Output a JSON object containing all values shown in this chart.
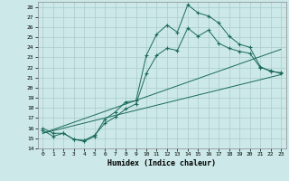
{
  "title": "",
  "xlabel": "Humidex (Indice chaleur)",
  "bg_color": "#cce8e8",
  "line_color": "#1a6b5a",
  "grid_color": "#aacccc",
  "xlim": [
    -0.5,
    23.5
  ],
  "ylim": [
    14,
    28.5
  ],
  "xticks": [
    0,
    1,
    2,
    3,
    4,
    5,
    6,
    7,
    8,
    9,
    10,
    11,
    12,
    13,
    14,
    15,
    16,
    17,
    18,
    19,
    20,
    21,
    22,
    23
  ],
  "yticks": [
    14,
    15,
    16,
    17,
    18,
    19,
    20,
    21,
    22,
    23,
    24,
    25,
    26,
    27,
    28
  ],
  "line1_x": [
    0,
    1,
    2,
    3,
    4,
    5,
    6,
    7,
    8,
    9,
    10,
    11,
    12,
    13,
    14,
    15,
    16,
    17,
    18,
    19,
    20,
    21,
    22,
    23
  ],
  "line1_y": [
    16.0,
    15.5,
    15.5,
    14.9,
    14.7,
    15.2,
    16.9,
    17.6,
    18.6,
    18.7,
    23.2,
    25.3,
    26.2,
    25.5,
    28.2,
    27.4,
    27.1,
    26.4,
    25.1,
    24.3,
    24.0,
    22.1,
    21.6,
    21.5
  ],
  "line2_x": [
    0,
    1,
    2,
    3,
    4,
    5,
    6,
    7,
    8,
    9,
    10,
    11,
    12,
    13,
    14,
    15,
    16,
    17,
    18,
    19,
    20,
    21,
    22,
    23
  ],
  "line2_y": [
    15.8,
    15.2,
    15.5,
    14.9,
    14.8,
    15.3,
    16.5,
    17.1,
    17.9,
    18.4,
    21.4,
    23.2,
    23.9,
    23.7,
    25.9,
    25.1,
    25.7,
    24.4,
    23.9,
    23.6,
    23.4,
    22.0,
    21.7,
    21.4
  ],
  "line3_x": [
    0,
    23
  ],
  "line3_y": [
    15.5,
    21.3
  ],
  "line4_x": [
    0,
    23
  ],
  "line4_y": [
    15.5,
    23.8
  ]
}
